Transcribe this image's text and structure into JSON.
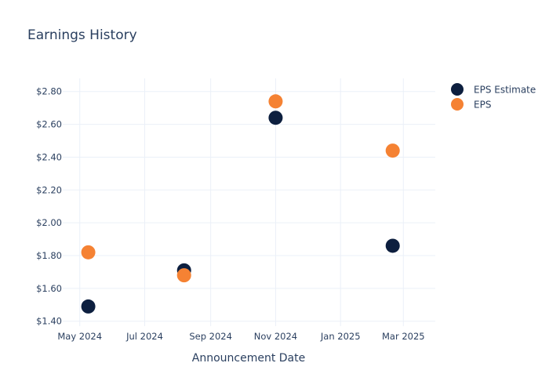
{
  "chart_data": {
    "type": "scatter",
    "title": "Earnings History",
    "xlabel": "Announcement Date",
    "ylabel": "",
    "x_axis_type": "date",
    "xlim": [
      "2024-04-15",
      "2025-03-31"
    ],
    "ylim": [
      1.37,
      2.88
    ],
    "x_ticks": [
      {
        "value": "2024-05-01",
        "label": "May 2024"
      },
      {
        "value": "2024-07-01",
        "label": "Jul 2024"
      },
      {
        "value": "2024-09-01",
        "label": "Sep 2024"
      },
      {
        "value": "2024-11-01",
        "label": "Nov 2024"
      },
      {
        "value": "2025-01-01",
        "label": "Jan 2025"
      },
      {
        "value": "2025-03-01",
        "label": "Mar 2025"
      }
    ],
    "y_ticks": [
      {
        "value": 1.4,
        "label": "$1.40"
      },
      {
        "value": 1.6,
        "label": "$1.60"
      },
      {
        "value": 1.8,
        "label": "$1.80"
      },
      {
        "value": 2.0,
        "label": "$2.00"
      },
      {
        "value": 2.2,
        "label": "$2.20"
      },
      {
        "value": 2.4,
        "label": "$2.40"
      },
      {
        "value": 2.6,
        "label": "$2.60"
      },
      {
        "value": 2.8,
        "label": "$2.80"
      }
    ],
    "grid": true,
    "legend_position": "top-right",
    "series": [
      {
        "name": "EPS Estimate",
        "color": "#0d1f3f",
        "x": [
          "2024-05-09",
          "2024-08-07",
          "2024-11-01",
          "2025-02-19"
        ],
        "y": [
          1.49,
          1.71,
          2.64,
          1.86
        ]
      },
      {
        "name": "EPS",
        "color": "#f58233",
        "x": [
          "2024-05-09",
          "2024-08-07",
          "2024-11-01",
          "2025-02-19"
        ],
        "y": [
          1.82,
          1.68,
          2.74,
          2.44
        ]
      }
    ]
  }
}
